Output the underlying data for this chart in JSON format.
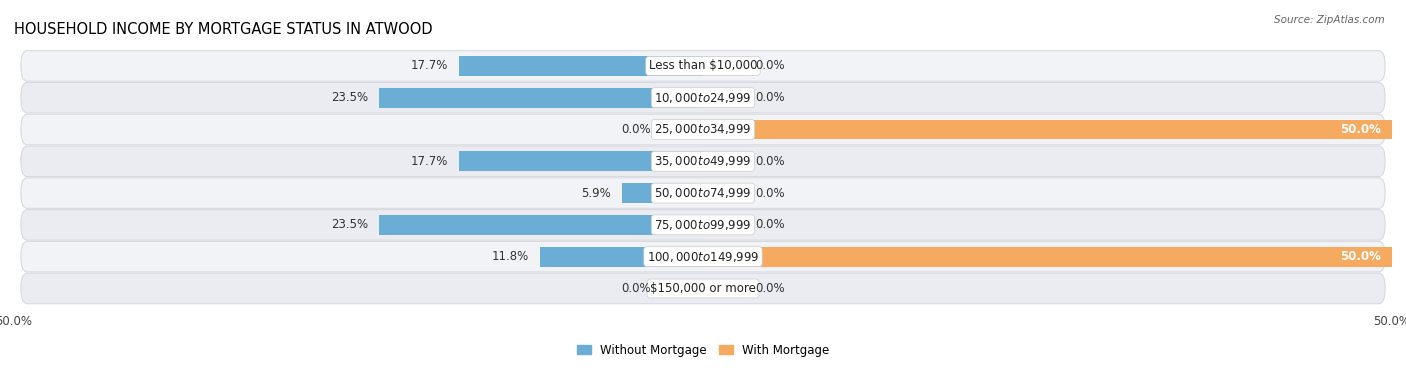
{
  "title": "HOUSEHOLD INCOME BY MORTGAGE STATUS IN ATWOOD",
  "source": "Source: ZipAtlas.com",
  "categories": [
    "Less than $10,000",
    "$10,000 to $24,999",
    "$25,000 to $34,999",
    "$35,000 to $49,999",
    "$50,000 to $74,999",
    "$75,000 to $99,999",
    "$100,000 to $149,999",
    "$150,000 or more"
  ],
  "without_mortgage": [
    17.7,
    23.5,
    0.0,
    17.7,
    5.9,
    23.5,
    11.8,
    0.0
  ],
  "with_mortgage": [
    0.0,
    0.0,
    50.0,
    0.0,
    0.0,
    0.0,
    50.0,
    0.0
  ],
  "color_without": "#6aaed6",
  "color_with": "#f5aa60",
  "color_without_light": "#c5dff0",
  "color_with_light": "#fad9b0",
  "xlim": [
    -50,
    50
  ],
  "bar_height": 0.62,
  "title_fontsize": 10.5,
  "label_fontsize": 8.5,
  "cat_fontsize": 8.5,
  "tick_fontsize": 8.5,
  "legend_fontsize": 8.5,
  "background_color": "#ffffff",
  "row_bg_color": "#f0f1f4",
  "row_bg_color2": "#e8eaef"
}
